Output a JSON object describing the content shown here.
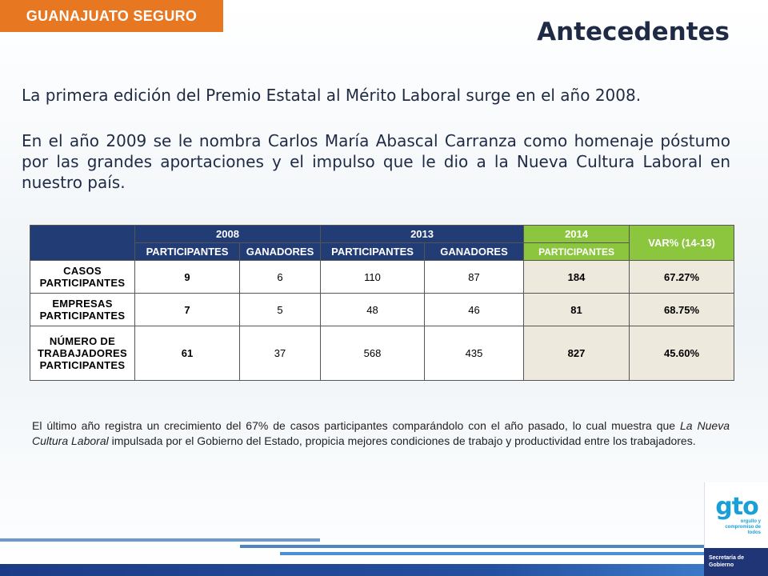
{
  "header": {
    "tag": "GUANAJUATO SEGURO",
    "title": "Antecedentes"
  },
  "paragraphs": [
    "La primera edición del Premio Estatal al Mérito Laboral surge en el año 2008.",
    "En el año 2009 se le nombra Carlos María Abascal Carranza como homenaje póstumo por las grandes aportaciones y el impulso que le dio a la Nueva Cultura Laboral en nuestro país."
  ],
  "table": {
    "years": [
      "2008",
      "2013",
      "2014"
    ],
    "var_header": "VAR% (14-13)",
    "subheaders": [
      "PARTICIPANTES",
      "GANADORES",
      "PARTICIPANTES",
      "GANADORES",
      "PARTICIPANTES"
    ],
    "rows": [
      {
        "label": "CASOS PARTICIPANTES",
        "values": [
          "9",
          "6",
          "110",
          "87",
          "184",
          "67.27%"
        ]
      },
      {
        "label": "EMPRESAS PARTICIPANTES",
        "values": [
          "7",
          "5",
          "48",
          "46",
          "81",
          "68.75%"
        ]
      },
      {
        "label": "NÚMERO DE TRABAJADORES PARTICIPANTES",
        "values": [
          "61",
          "37",
          "568",
          "435",
          "827",
          "45.60%"
        ]
      }
    ]
  },
  "note": {
    "part1": "El último año registra un crecimiento del 67% de casos participantes  comparándolo con el año pasado, lo cual muestra que ",
    "italic": "La Nueva Cultura Laboral",
    "part2": " impulsada por el Gobierno del Estado, propicia mejores condiciones de trabajo y productividad entre los trabajadores."
  },
  "logo": {
    "text": "gto",
    "tagline": "orgullo y compromiso de todos",
    "office": "Secretaría de Gobierno"
  },
  "colors": {
    "orange_tag": "#e87722",
    "navy_header": "#223c76",
    "green_header": "#8cc63f",
    "beige_cells": "#ede9dd",
    "footer_blue": "#2450a0"
  }
}
